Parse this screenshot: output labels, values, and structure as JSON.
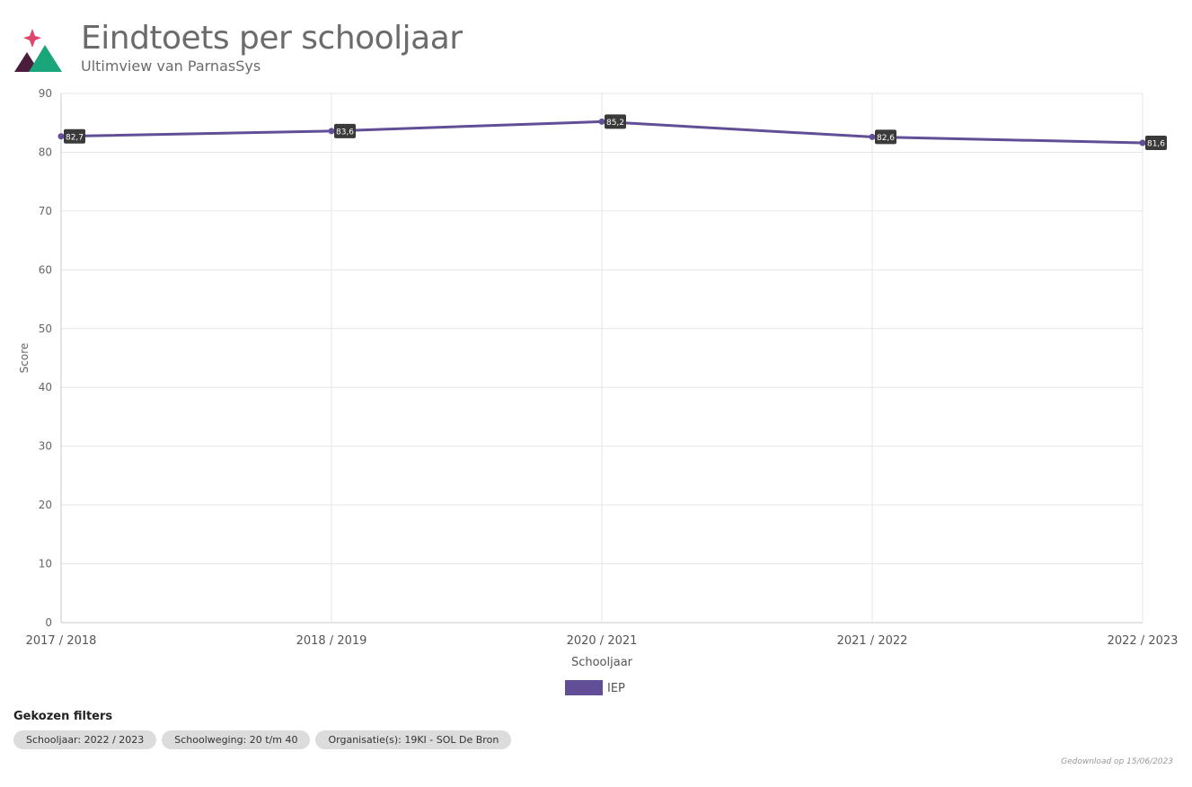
{
  "header": {
    "title": "Eindtoets per schooljaar",
    "subtitle": "Ultimview van ParnasSys",
    "logo_colors": [
      "#e0456b",
      "#4a1d3d",
      "#1aa67a"
    ]
  },
  "chart_data": {
    "type": "line",
    "categories": [
      "2017 / 2018",
      "2018 / 2019",
      "2020 / 2021",
      "2021 / 2022",
      "2022 / 2023"
    ],
    "series": [
      {
        "name": "IEP",
        "color": "#624e96",
        "values": [
          82.7,
          83.6,
          85.2,
          82.6,
          81.6
        ],
        "labels": [
          "82,7",
          "83,6",
          "85,2",
          "82,6",
          "81,6"
        ]
      }
    ],
    "xlabel": "Schooljaar",
    "ylabel": "Score",
    "ylim": [
      0,
      90
    ],
    "yticks": [
      0,
      10,
      20,
      30,
      40,
      50,
      60,
      70,
      80,
      90
    ],
    "grid": true,
    "legend": "bottom-center"
  },
  "filters": {
    "title": "Gekozen filters",
    "chips": [
      "Schooljaar: 2022 / 2023",
      "Schoolweging: 20 t/m 40",
      "Organisatie(s): 19KI - SOL De Bron"
    ]
  },
  "footer": {
    "download_note": "Gedownload op 15/06/2023"
  }
}
